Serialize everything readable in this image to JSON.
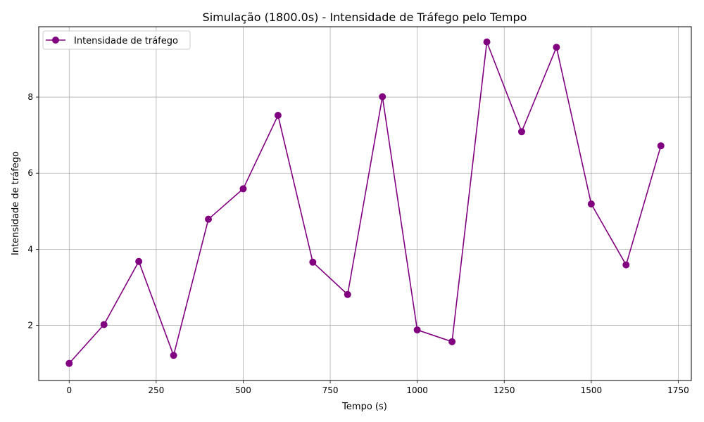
{
  "chart_data": {
    "type": "line",
    "title": "Simulação (1800.0s) - Intensidade de Tráfego pelo Tempo",
    "xlabel": "Tempo (s)",
    "ylabel": "Intensidade de tráfego",
    "xlim": [
      -87.5,
      1787.5
    ],
    "ylim": [
      0.55,
      9.85
    ],
    "xticks": [
      0,
      250,
      500,
      750,
      1000,
      1250,
      1500,
      1750
    ],
    "yticks": [
      2,
      4,
      6,
      8
    ],
    "grid": true,
    "legend_position": "upper-left",
    "series": [
      {
        "name": "Intensidade de tráfego",
        "color": "#800080",
        "marker": "circle",
        "x": [
          0,
          100,
          200,
          300,
          400,
          500,
          600,
          700,
          800,
          900,
          1000,
          1100,
          1200,
          1300,
          1400,
          1500,
          1600,
          1700
        ],
        "y": [
          1.0,
          2.02,
          3.68,
          1.21,
          4.79,
          5.59,
          7.52,
          3.66,
          2.81,
          8.01,
          1.88,
          1.57,
          9.45,
          7.09,
          9.31,
          5.19,
          3.59,
          6.72
        ]
      }
    ]
  }
}
